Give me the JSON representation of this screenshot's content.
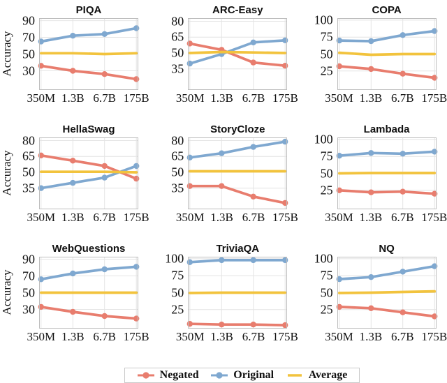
{
  "figure": {
    "ylabel": "Accuracy",
    "x_tick_labels": [
      "350M",
      "1.3B",
      "6.7B",
      "175B"
    ],
    "legend": [
      {
        "label": "Negated",
        "color": "#e87d6e",
        "marker": true
      },
      {
        "label": "Original",
        "color": "#7fa8d0",
        "marker": true
      },
      {
        "label": "Average",
        "color": "#f2c33d",
        "marker": false
      }
    ],
    "legend_position": "bottom-center",
    "grid": true
  },
  "colors": {
    "negated": "#e87d6e",
    "original": "#7fa8d0",
    "average": "#f2c33d",
    "grid": "#e4e4e4",
    "border": "#bdbdbd",
    "text": "#111111"
  },
  "chart_data": [
    {
      "type": "line",
      "title": "PIQA",
      "x": [
        "350M",
        "1.3B",
        "6.7B",
        "175B"
      ],
      "ylabel": "Accuracy",
      "yticks": [
        30,
        50,
        70,
        90
      ],
      "ylim": [
        7,
        93
      ],
      "series": [
        {
          "name": "Negated",
          "values": [
            36,
            30,
            26,
            20
          ]
        },
        {
          "name": "Original",
          "values": [
            65,
            72,
            74,
            81
          ]
        },
        {
          "name": "Average",
          "values": [
            51,
            51,
            50,
            51
          ]
        }
      ]
    },
    {
      "type": "line",
      "title": "ARC-Easy",
      "x": [
        "350M",
        "1.3B",
        "6.7B",
        "175B"
      ],
      "ylabel": "Accuracy",
      "yticks": [
        35,
        50,
        65,
        80
      ],
      "ylim": [
        15,
        83
      ],
      "series": [
        {
          "name": "Negated",
          "values": [
            59,
            53,
            41,
            38
          ]
        },
        {
          "name": "Original",
          "values": [
            40,
            49,
            60,
            62
          ]
        },
        {
          "name": "Average",
          "values": [
            50,
            51,
            50.5,
            50
          ]
        }
      ]
    },
    {
      "type": "line",
      "title": "COPA",
      "x": [
        "350M",
        "1.3B",
        "6.7B",
        "175B"
      ],
      "ylabel": "Accuracy",
      "yticks": [
        25,
        50,
        75,
        100
      ],
      "ylim": [
        -3,
        103
      ],
      "series": [
        {
          "name": "Negated",
          "values": [
            32,
            28,
            21,
            15
          ]
        },
        {
          "name": "Original",
          "values": [
            70,
            69,
            78,
            84
          ]
        },
        {
          "name": "Average",
          "values": [
            52,
            49,
            50,
            50
          ]
        }
      ]
    },
    {
      "type": "line",
      "title": "HellaSwag",
      "x": [
        "350M",
        "1.3B",
        "6.7B",
        "175B"
      ],
      "ylabel": "Accuracy",
      "yticks": [
        35,
        50,
        65,
        80
      ],
      "ylim": [
        15,
        83
      ],
      "series": [
        {
          "name": "Negated",
          "values": [
            66,
            61,
            56,
            44
          ]
        },
        {
          "name": "Original",
          "values": [
            35,
            40,
            45,
            56
          ]
        },
        {
          "name": "Average",
          "values": [
            50.5,
            50.5,
            50.5,
            50
          ]
        }
      ]
    },
    {
      "type": "line",
      "title": "StoryCloze",
      "x": [
        "350M",
        "1.3B",
        "6.7B",
        "175B"
      ],
      "ylabel": "Accuracy",
      "yticks": [
        35,
        50,
        65,
        80
      ],
      "ylim": [
        15,
        83
      ],
      "series": [
        {
          "name": "Negated",
          "values": [
            37,
            37,
            27,
            21
          ]
        },
        {
          "name": "Original",
          "values": [
            64,
            68,
            74,
            79
          ]
        },
        {
          "name": "Average",
          "values": [
            51,
            51,
            51,
            51
          ]
        }
      ]
    },
    {
      "type": "line",
      "title": "Lambada",
      "x": [
        "350M",
        "1.3B",
        "6.7B",
        "175B"
      ],
      "ylabel": "Accuracy",
      "yticks": [
        25,
        50,
        75,
        100
      ],
      "ylim": [
        -3,
        103
      ],
      "series": [
        {
          "name": "Negated",
          "values": [
            25,
            22,
            23,
            20
          ]
        },
        {
          "name": "Original",
          "values": [
            76,
            80,
            79,
            82
          ]
        },
        {
          "name": "Average",
          "values": [
            50,
            50.5,
            50.5,
            50.5
          ]
        }
      ]
    },
    {
      "type": "line",
      "title": "WebQuestions",
      "x": [
        "350M",
        "1.3B",
        "6.7B",
        "175B"
      ],
      "ylabel": "Accuracy",
      "yticks": [
        30,
        50,
        70,
        90
      ],
      "ylim": [
        7,
        93
      ],
      "series": [
        {
          "name": "Negated",
          "values": [
            33,
            27,
            22,
            19
          ]
        },
        {
          "name": "Original",
          "values": [
            66,
            73,
            78,
            81
          ]
        },
        {
          "name": "Average",
          "values": [
            50,
            50,
            50,
            50
          ]
        }
      ]
    },
    {
      "type": "line",
      "title": "TriviaQA",
      "x": [
        "350M",
        "1.3B",
        "6.7B",
        "175B"
      ],
      "ylabel": "Accuracy",
      "yticks": [
        25,
        50,
        75,
        100
      ],
      "ylim": [
        -3,
        103
      ],
      "series": [
        {
          "name": "Negated",
          "values": [
            4,
            3,
            3,
            2
          ]
        },
        {
          "name": "Original",
          "values": [
            95,
            98,
            98,
            98
          ]
        },
        {
          "name": "Average",
          "values": [
            49.5,
            50,
            50,
            50
          ]
        }
      ]
    },
    {
      "type": "line",
      "title": "NQ",
      "x": [
        "350M",
        "1.3B",
        "6.7B",
        "175B"
      ],
      "ylabel": "Accuracy",
      "yticks": [
        25,
        50,
        75,
        100
      ],
      "ylim": [
        -3,
        103
      ],
      "series": [
        {
          "name": "Negated",
          "values": [
            29,
            27,
            21,
            15
          ]
        },
        {
          "name": "Original",
          "values": [
            70,
            73,
            81,
            89
          ]
        },
        {
          "name": "Average",
          "values": [
            49.5,
            50,
            51,
            52
          ]
        }
      ]
    }
  ]
}
